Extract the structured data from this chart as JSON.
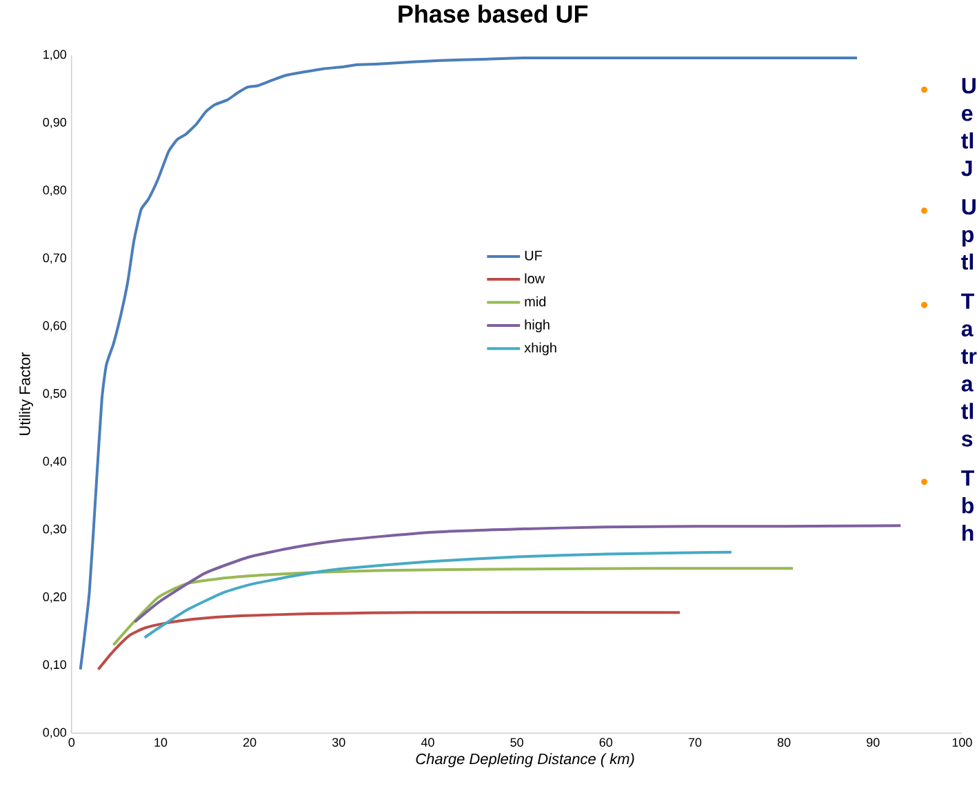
{
  "chart_data": {
    "type": "line",
    "title": "Phase based UF",
    "xlabel": "Charge Depleting Distance ( km)",
    "ylabel": "Utility Factor",
    "xlim": [
      0,
      100
    ],
    "xticks": [
      0,
      10,
      20,
      30,
      40,
      50,
      60,
      70,
      80,
      90,
      100
    ],
    "ylim": [
      0,
      1
    ],
    "yticks": [
      {
        "value": 0,
        "label": "0,00"
      },
      {
        "value": 0.1,
        "label": "0,10"
      },
      {
        "value": 0.2,
        "label": "0,20"
      },
      {
        "value": 0.3,
        "label": "0,30"
      },
      {
        "value": 0.4,
        "label": "0,40"
      },
      {
        "value": 0.5,
        "label": "0,50"
      },
      {
        "value": 0.6,
        "label": "0,60"
      },
      {
        "value": 0.7,
        "label": "0,70"
      },
      {
        "value": 0.8,
        "label": "0,80"
      },
      {
        "value": 0.9,
        "label": "0,90"
      },
      {
        "value": 1,
        "label": "1,00"
      }
    ],
    "grid": false,
    "legend": "center",
    "marker": "none",
    "line_style": "solid",
    "series": [
      {
        "name": "UF",
        "color": "#4a7ebb",
        "x": [
          1.0,
          2.0,
          2.8,
          3.4,
          3.9,
          4.7,
          5.5,
          6.3,
          7.0,
          7.8,
          8.6,
          9.7,
          10.9,
          11.9,
          12.8,
          14.0,
          15.1,
          16.1,
          17.5,
          18.6,
          19.8,
          20.9,
          22.5,
          24.0,
          26.0,
          28.3,
          30.6,
          32.1,
          34.5,
          38.3,
          41.4,
          46.1,
          50.7,
          61.5,
          88.2
        ],
        "values": [
          0.094,
          0.208,
          0.371,
          0.492,
          0.543,
          0.574,
          0.615,
          0.665,
          0.726,
          0.772,
          0.787,
          0.817,
          0.858,
          0.876,
          0.883,
          0.898,
          0.917,
          0.927,
          0.934,
          0.944,
          0.953,
          0.955,
          0.963,
          0.97,
          0.975,
          0.98,
          0.983,
          0.986,
          0.987,
          0.99,
          0.992,
          0.994,
          0.996,
          0.996,
          0.996
        ]
      },
      {
        "name": "low",
        "color": "#be4b48",
        "x": [
          3.0,
          4.3,
          5.5,
          6.6,
          8.2,
          10.5,
          13.6,
          19.0,
          26.7,
          38.3,
          68.3
        ],
        "values": [
          0.094,
          0.115,
          0.132,
          0.145,
          0.155,
          0.162,
          0.168,
          0.173,
          0.176,
          0.178,
          0.178
        ]
      },
      {
        "name": "mid",
        "color": "#98b954",
        "x": [
          4.7,
          7.0,
          9.7,
          12.8,
          16.7,
          21.3,
          27,
          35,
          50,
          65,
          81
        ],
        "values": [
          0.13,
          0.164,
          0.2,
          0.22,
          0.228,
          0.233,
          0.237,
          0.24,
          0.242,
          0.243,
          0.243
        ]
      },
      {
        "name": "high",
        "color": "#7d60a0",
        "x": [
          7.1,
          10,
          15,
          20,
          25,
          30,
          40,
          50,
          60,
          70,
          80,
          93.1
        ],
        "values": [
          0.164,
          0.195,
          0.236,
          0.26,
          0.274,
          0.284,
          0.296,
          0.301,
          0.304,
          0.305,
          0.305,
          0.306
        ]
      },
      {
        "name": "xhigh",
        "color": "#46aac5",
        "x": [
          8.2,
          10,
          13,
          17,
          20,
          25,
          30,
          40,
          50,
          60,
          74.1
        ],
        "values": [
          0.141,
          0.157,
          0.182,
          0.207,
          0.219,
          0.232,
          0.242,
          0.253,
          0.26,
          0.264,
          0.267
        ]
      }
    ],
    "annotations": [
      "U e tl J",
      "U p tl",
      "T a tr a tl s",
      "T b h"
    ]
  }
}
